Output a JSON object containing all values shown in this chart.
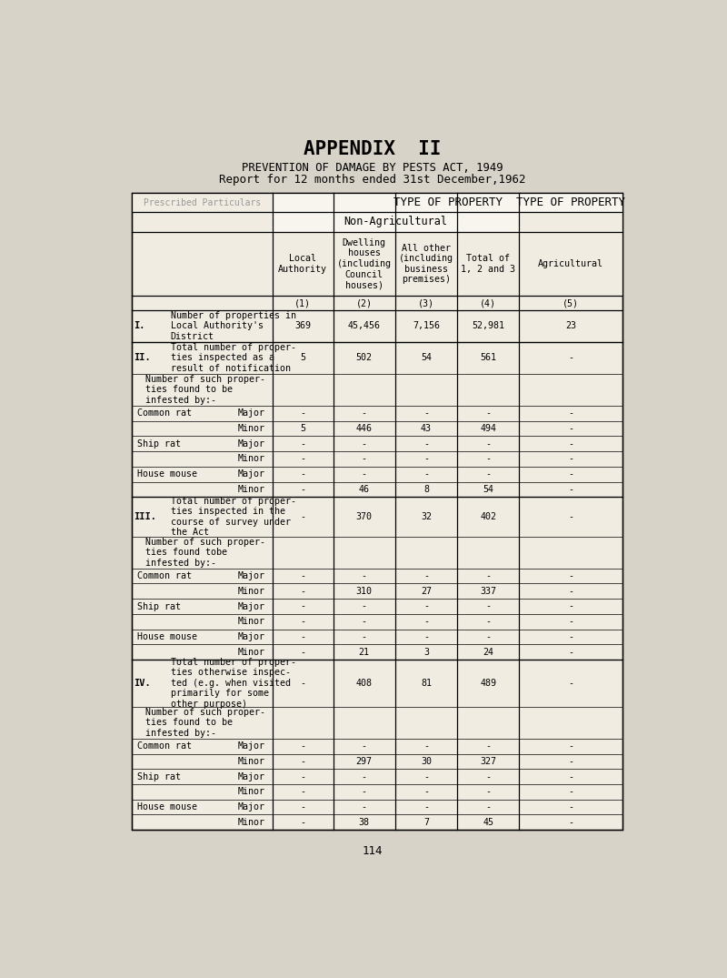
{
  "title1": "APPENDIX  II",
  "title2": "PREVENTION OF DAMAGE BY PESTS ACT, 1949",
  "title3": "Report for 12 months ended 31st December,1962",
  "page_number": "114",
  "rows": [
    {
      "section": "I.",
      "label": "Number of properties in\nLocal Authority's\nDistrict",
      "type": "",
      "c1": "369",
      "c2": "45,456",
      "c3": "7,156",
      "c4": "52,981",
      "c5": "23"
    },
    {
      "section": "II.",
      "label": "Total number of proper-\nties inspected as a\nresult of notification",
      "type": "",
      "c1": "5",
      "c2": "502",
      "c3": "54",
      "c4": "561",
      "c5": "-"
    },
    {
      "section": "",
      "label": "Number of such proper-\nties found to be\ninfested by:-",
      "type": "",
      "c1": "",
      "c2": "",
      "c3": "",
      "c4": "",
      "c5": ""
    },
    {
      "section": "",
      "label": "Common rat",
      "type": "Major",
      "c1": "-",
      "c2": "-",
      "c3": "-",
      "c4": "-",
      "c5": "-"
    },
    {
      "section": "",
      "label": "",
      "type": "Minor",
      "c1": "5",
      "c2": "446",
      "c3": "43",
      "c4": "494",
      "c5": "-"
    },
    {
      "section": "",
      "label": "Ship rat",
      "type": "Major",
      "c1": "-",
      "c2": "-",
      "c3": "-",
      "c4": "-",
      "c5": "-"
    },
    {
      "section": "",
      "label": "",
      "type": "Minor",
      "c1": "-",
      "c2": "-",
      "c3": "-",
      "c4": "-",
      "c5": "-"
    },
    {
      "section": "",
      "label": "House mouse",
      "type": "Major",
      "c1": "-",
      "c2": "-",
      "c3": "-",
      "c4": "-",
      "c5": "-"
    },
    {
      "section": "",
      "label": "",
      "type": "Minor",
      "c1": "-",
      "c2": "46",
      "c3": "8",
      "c4": "54",
      "c5": "-"
    },
    {
      "section": "III.",
      "label": "Total number of proper-\nties inspected in the\ncourse of survey under\nthe Act",
      "type": "",
      "c1": "-",
      "c2": "370",
      "c3": "32",
      "c4": "402",
      "c5": "-"
    },
    {
      "section": "",
      "label": "Number of such proper-\nties found tobe\ninfested by:-",
      "type": "",
      "c1": "",
      "c2": "",
      "c3": "",
      "c4": "",
      "c5": ""
    },
    {
      "section": "",
      "label": "Common rat",
      "type": "Major",
      "c1": "-",
      "c2": "-",
      "c3": "-",
      "c4": "-",
      "c5": "-"
    },
    {
      "section": "",
      "label": "",
      "type": "Minor",
      "c1": "-",
      "c2": "310",
      "c3": "27",
      "c4": "337",
      "c5": "-"
    },
    {
      "section": "",
      "label": "Ship rat",
      "type": "Major",
      "c1": "-",
      "c2": "-",
      "c3": "-",
      "c4": "-",
      "c5": "-"
    },
    {
      "section": "",
      "label": "",
      "type": "Minor",
      "c1": "-",
      "c2": "-",
      "c3": "-",
      "c4": "-",
      "c5": "-"
    },
    {
      "section": "",
      "label": "House mouse",
      "type": "Major",
      "c1": "-",
      "c2": "-",
      "c3": "-",
      "c4": "-",
      "c5": "-"
    },
    {
      "section": "",
      "label": "",
      "type": "Minor",
      "c1": "-",
      "c2": "21",
      "c3": "3",
      "c4": "24",
      "c5": "-"
    },
    {
      "section": "IV.",
      "label": "Total number of proper-\nties otherwise inspec-\nted (e.g. when visited\nprimarily for some\nother purpose)",
      "type": "",
      "c1": "-",
      "c2": "408",
      "c3": "81",
      "c4": "489",
      "c5": "-"
    },
    {
      "section": "",
      "label": "Number of such proper-\nties found to be\ninfested by:-",
      "type": "",
      "c1": "",
      "c2": "",
      "c3": "",
      "c4": "",
      "c5": ""
    },
    {
      "section": "",
      "label": "Common rat",
      "type": "Major",
      "c1": "-",
      "c2": "-",
      "c3": "-",
      "c4": "-",
      "c5": "-"
    },
    {
      "section": "",
      "label": "",
      "type": "Minor",
      "c1": "-",
      "c2": "297",
      "c3": "30",
      "c4": "327",
      "c5": "-"
    },
    {
      "section": "",
      "label": "Ship rat",
      "type": "Major",
      "c1": "-",
      "c2": "-",
      "c3": "-",
      "c4": "-",
      "c5": "-"
    },
    {
      "section": "",
      "label": "",
      "type": "Minor",
      "c1": "-",
      "c2": "-",
      "c3": "-",
      "c4": "-",
      "c5": "-"
    },
    {
      "section": "",
      "label": "House mouse",
      "type": "Major",
      "c1": "-",
      "c2": "-",
      "c3": "-",
      "c4": "-",
      "c5": "-"
    },
    {
      "section": "",
      "label": "",
      "type": "Minor",
      "c1": "-",
      "c2": "38",
      "c3": "7",
      "c4": "45",
      "c5": "-"
    }
  ],
  "bg_color": "#d8d3c8",
  "page_bg": "#e8e4da",
  "table_bg": "#f0ece2",
  "white_cell": "#f8f5ee"
}
